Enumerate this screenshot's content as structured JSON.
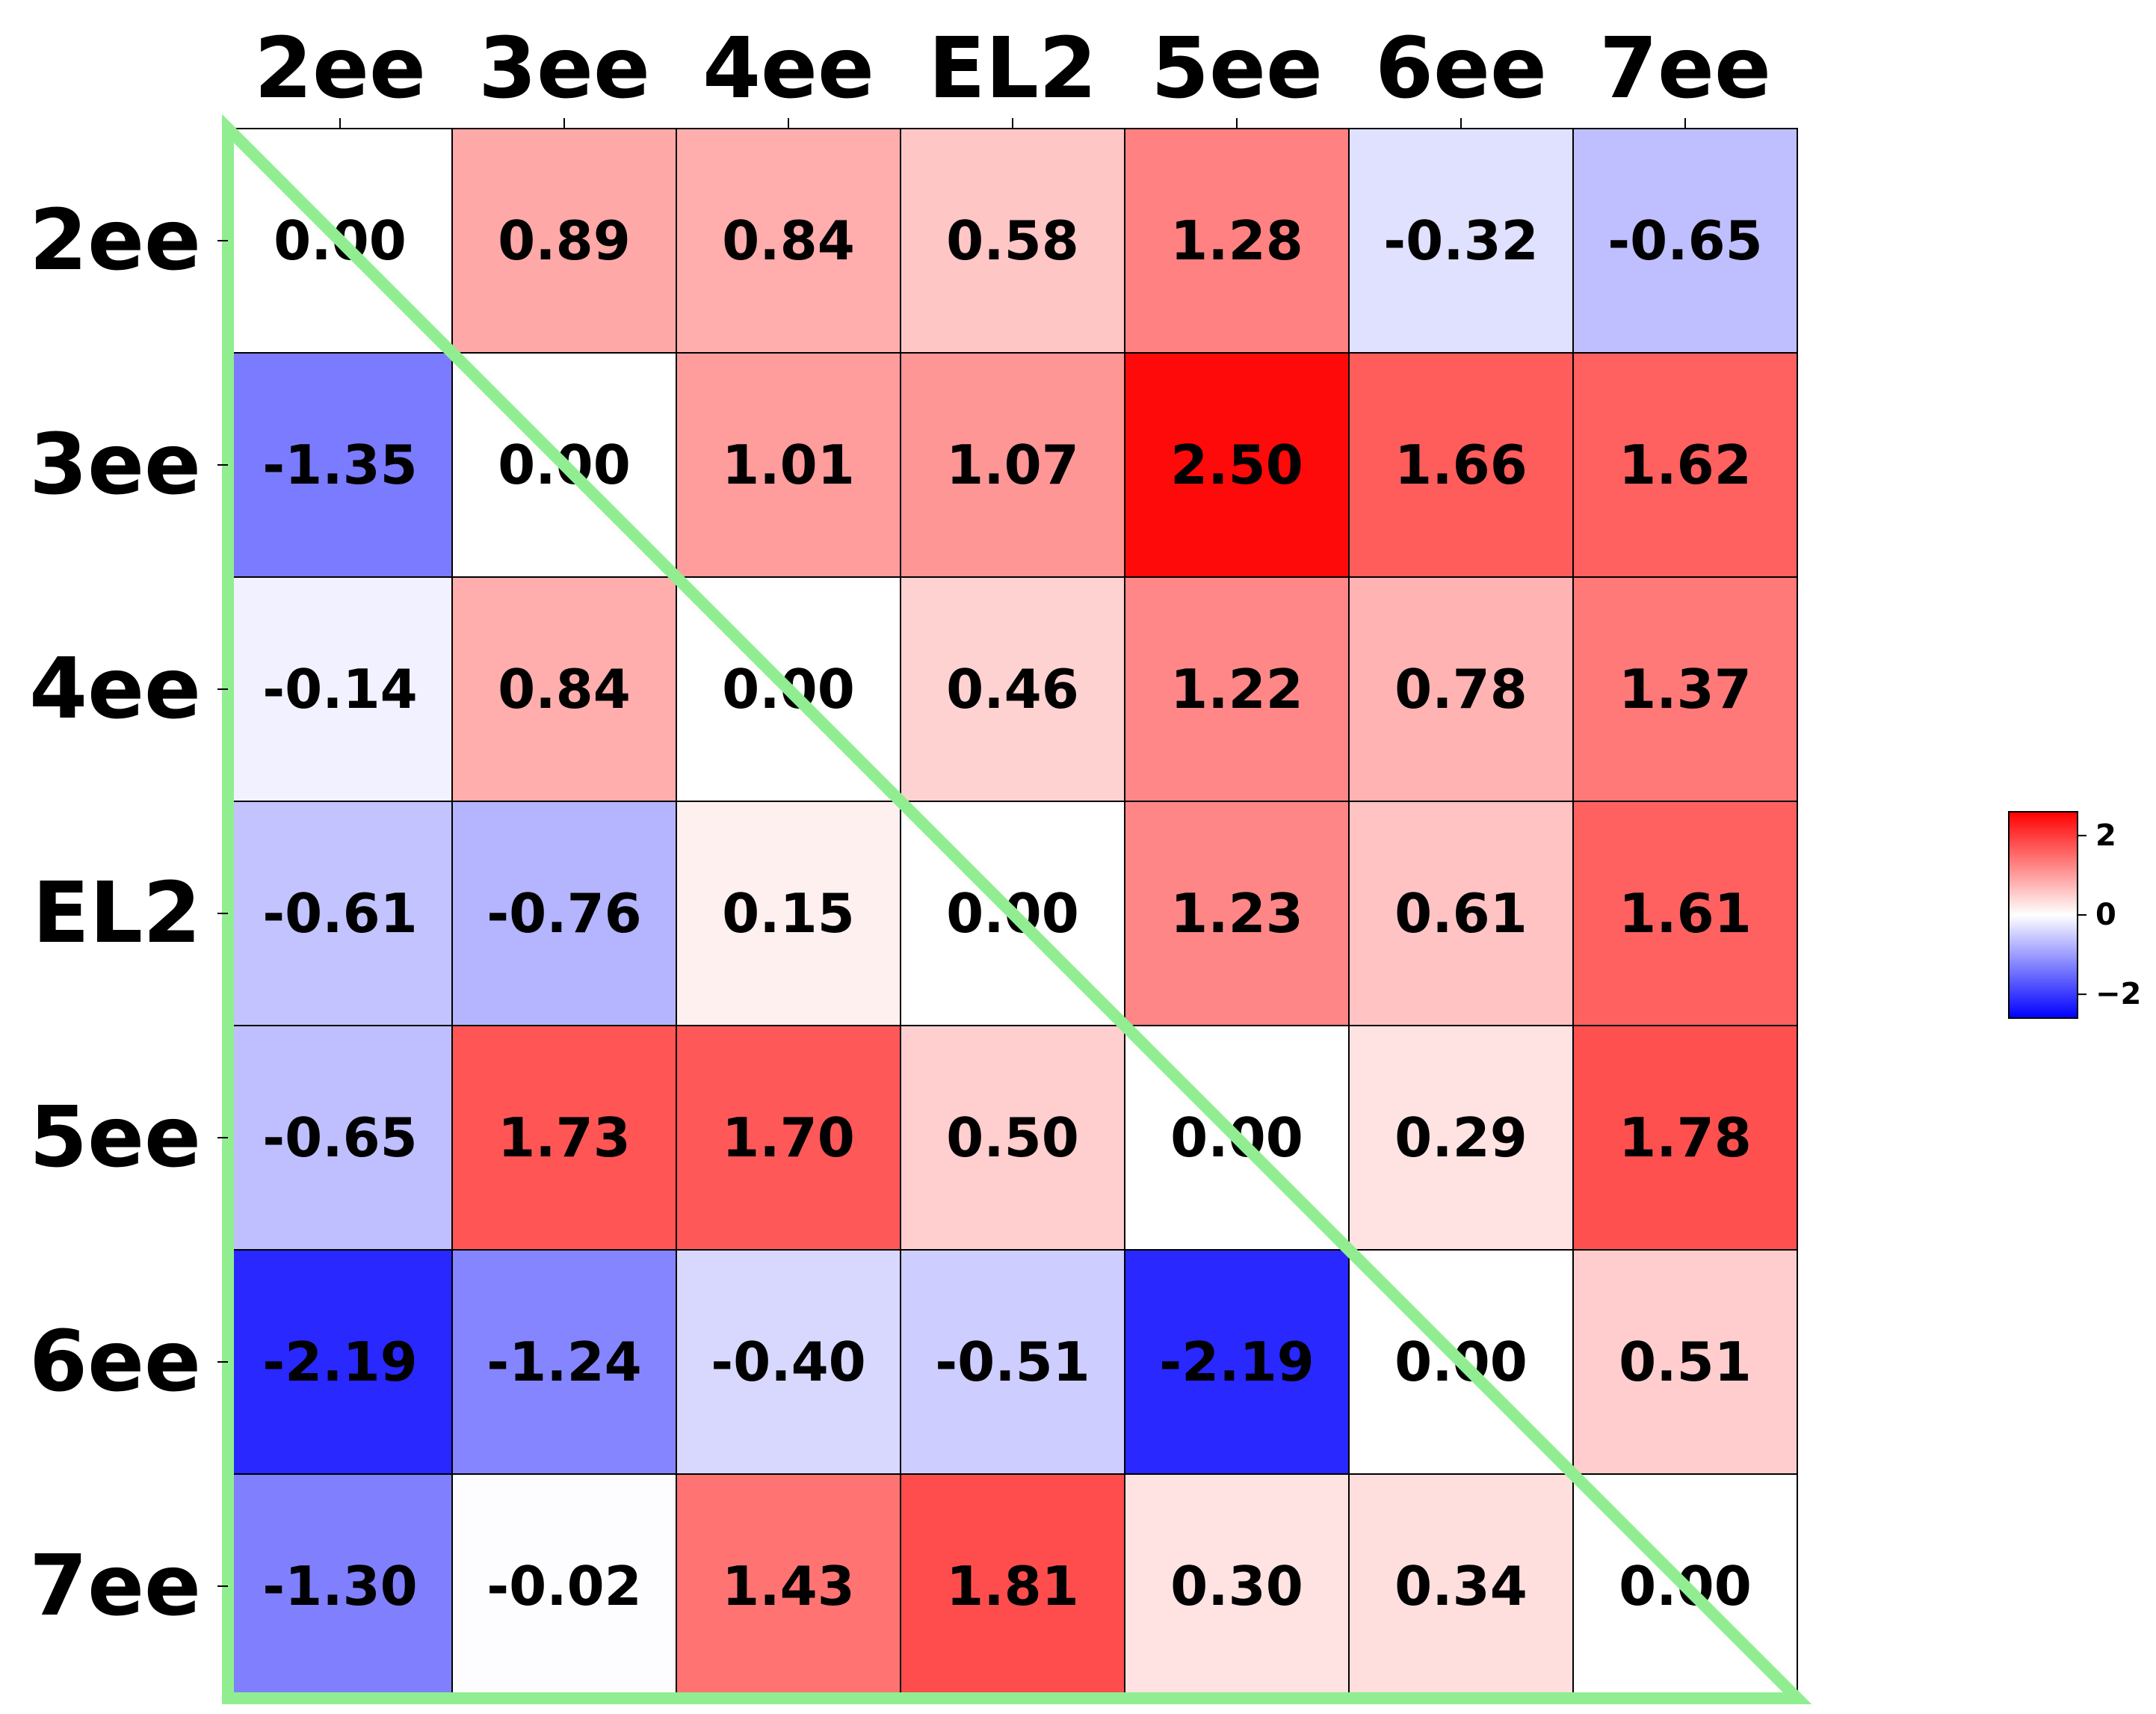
{
  "chart_data": {
    "type": "heatmap",
    "columns": [
      "2ee",
      "3ee",
      "4ee",
      "EL2",
      "5ee",
      "6ee",
      "7ee"
    ],
    "rows": [
      "2ee",
      "3ee",
      "4ee",
      "EL2",
      "5ee",
      "6ee",
      "7ee"
    ],
    "value_labels": [
      [
        "0.00",
        "0.89",
        "0.84",
        "0.58",
        "1.28",
        "-0.32",
        "-0.65"
      ],
      [
        "-1.35",
        "0.00",
        "1.01",
        "1.07",
        "2.50",
        "1.66",
        "1.62"
      ],
      [
        "-0.14",
        "0.84",
        "0.00",
        "0.46",
        "1.22",
        "0.78",
        "1.37"
      ],
      [
        "-0.61",
        "-0.76",
        "0.15",
        "0.00",
        "1.23",
        "0.61",
        "1.61"
      ],
      [
        "-0.65",
        "1.73",
        "1.70",
        "0.50",
        "0.00",
        "0.29",
        "1.78"
      ],
      [
        "-2.19",
        "-1.24",
        "-0.40",
        "-0.51",
        "-2.19",
        "0.00",
        "0.51"
      ],
      [
        "-1.30",
        "-0.02",
        "1.43",
        "1.81",
        "0.30",
        "0.34",
        "0.00"
      ]
    ],
    "colormap": {
      "name": "bwr",
      "low": "#0000ff",
      "mid": "#ffffff",
      "high": "#ff0000"
    },
    "vmin": -2.6,
    "vmax": 2.6,
    "colorbar": {
      "ticks": [
        "2",
        "0",
        "−2"
      ],
      "tick_values": [
        2,
        0,
        -2
      ]
    },
    "overlay_color": "#90ee90",
    "grid_color": "#000000"
  }
}
